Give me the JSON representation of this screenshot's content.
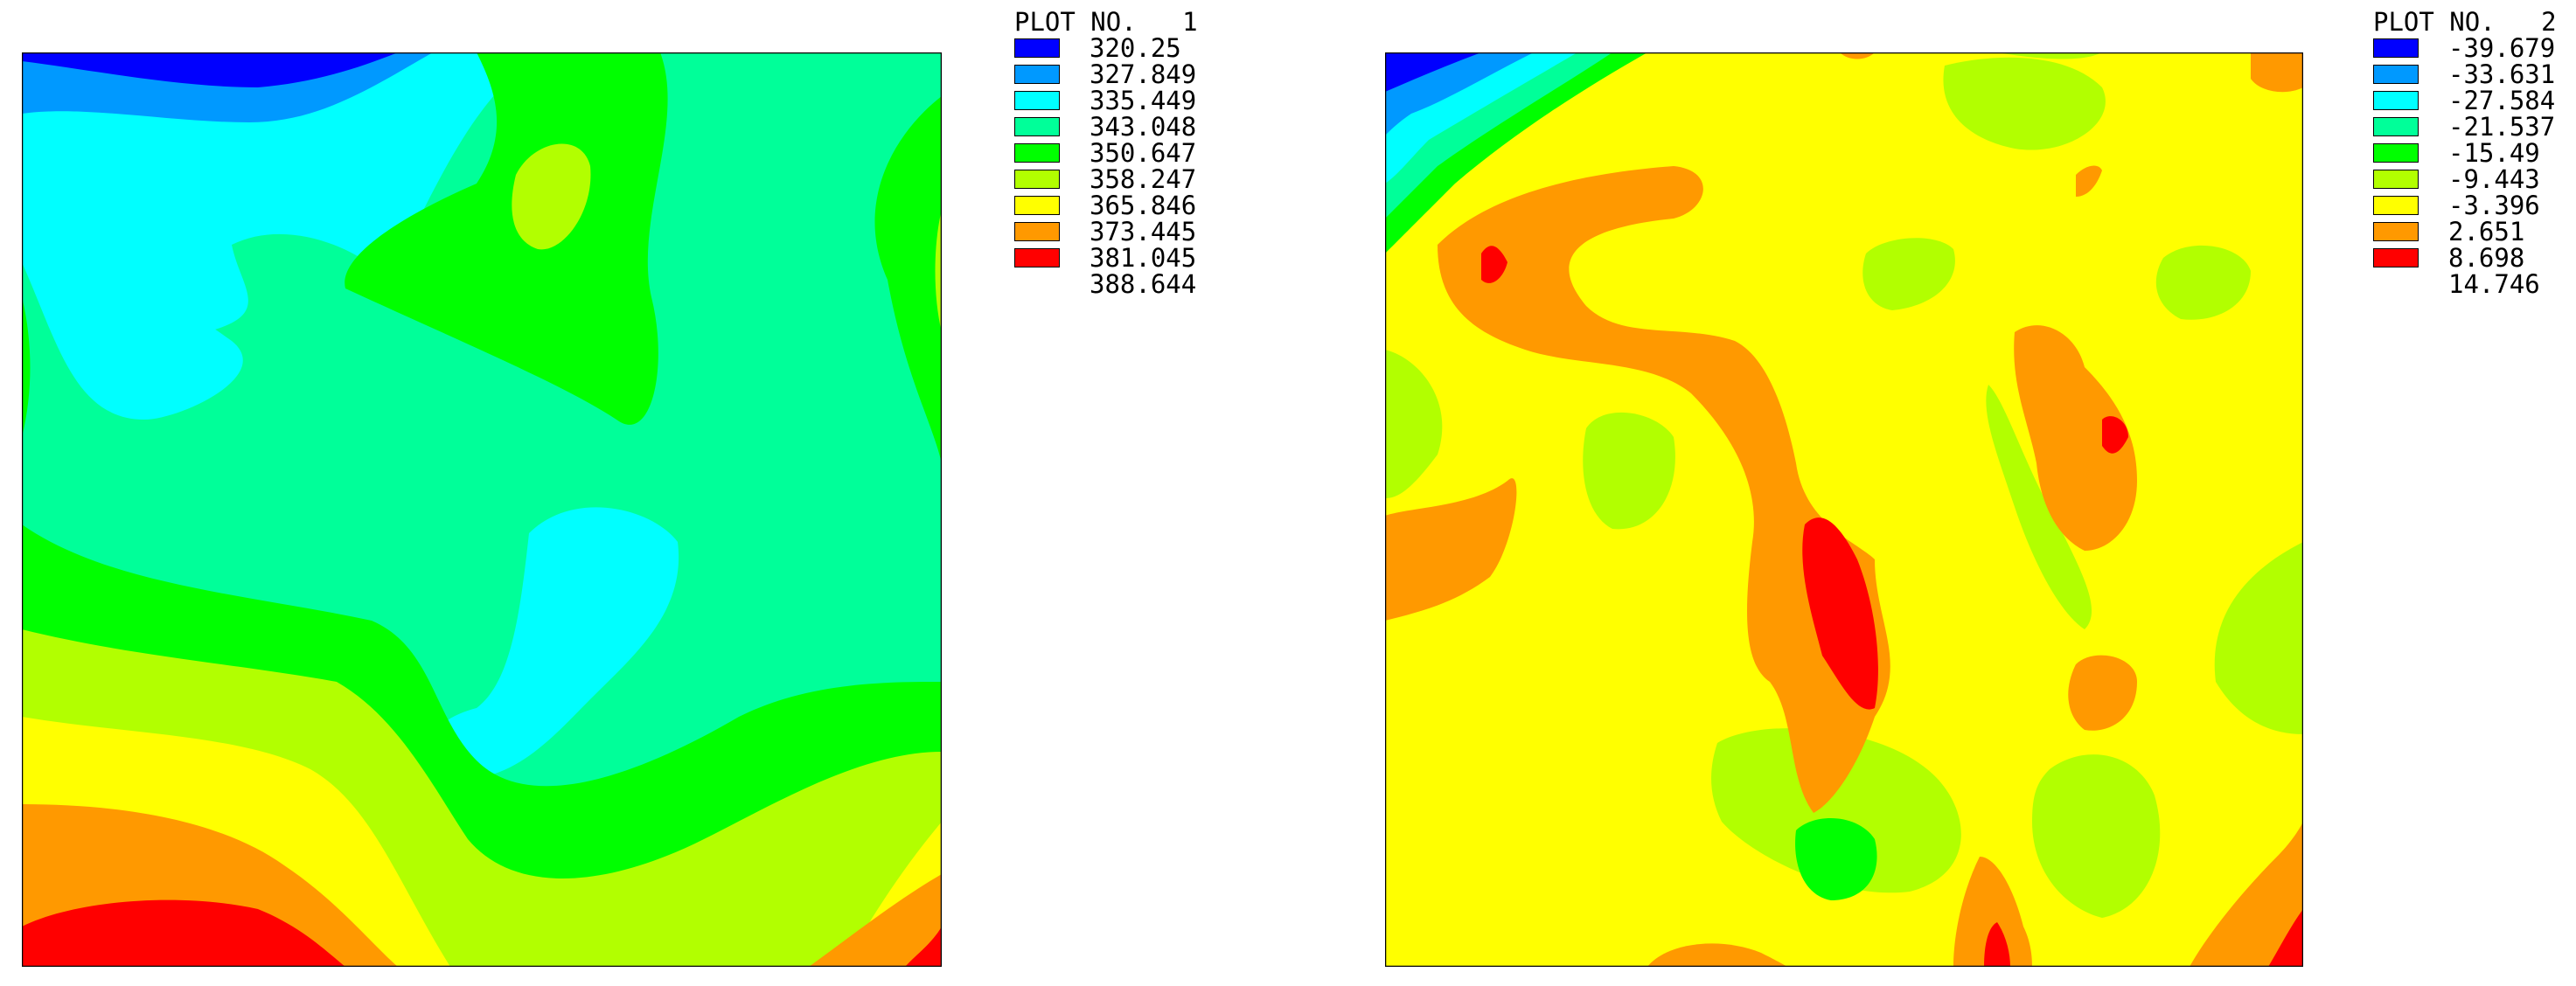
{
  "chart_data": [
    {
      "type": "heatmap",
      "plot_label": "PLOT NO.",
      "plot_number": "1",
      "legend": {
        "values": [
          "320.25",
          "327.849",
          "335.449",
          "343.048",
          "350.647",
          "358.247",
          "365.846",
          "373.445",
          "381.045",
          "388.644"
        ],
        "colors": [
          "#0000ff",
          "#0099ff",
          "#00ffff",
          "#00ff99",
          "#00ff00",
          "#b2ff00",
          "#ffff00",
          "#ff9900",
          "#ff0000"
        ]
      }
    },
    {
      "type": "heatmap",
      "plot_label": "PLOT NO.",
      "plot_number": "2",
      "legend": {
        "values": [
          "-39.679",
          "-33.631",
          "-27.584",
          "-21.537",
          "-15.49",
          "-9.443",
          "-3.396",
          "2.651",
          "8.698",
          "14.746"
        ],
        "colors": [
          "#0000ff",
          "#0099ff",
          "#00ffff",
          "#00ff99",
          "#00ff00",
          "#b2ff00",
          "#ffff00",
          "#ff9900",
          "#ff0000"
        ]
      }
    }
  ]
}
